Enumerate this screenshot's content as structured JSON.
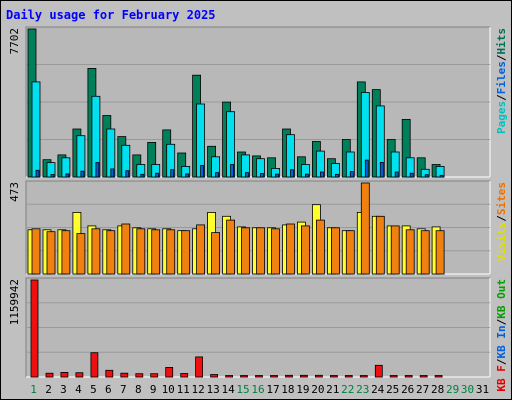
{
  "chart_data": [
    {
      "type": "bar",
      "title": "Daily usage for February 2025",
      "panel": "hits-files-pages",
      "y_max_label": "7702",
      "ylim": [
        0,
        7702
      ],
      "categories": [
        "1",
        "2",
        "3",
        "4",
        "5",
        "6",
        "7",
        "8",
        "9",
        "10",
        "11",
        "12",
        "13",
        "14",
        "15",
        "16",
        "17",
        "18",
        "19",
        "20",
        "21",
        "22",
        "23",
        "24",
        "25",
        "26",
        "27",
        "28",
        "29",
        "30",
        "31"
      ],
      "legend": [
        {
          "text": "Pages",
          "color": "#00C0C0"
        },
        {
          "text": "Files",
          "color": "#0060E0"
        },
        {
          "text": "Hits",
          "color": "#007050"
        }
      ],
      "series": [
        {
          "name": "Hits",
          "color": "#00805A",
          "values": [
            7702,
            900,
            1150,
            2500,
            5650,
            3200,
            2100,
            1150,
            1800,
            2450,
            1250,
            5300,
            1600,
            3900,
            1300,
            1100,
            1000,
            2500,
            1050,
            1850,
            950,
            1950,
            4950,
            4550,
            1950,
            3000,
            1000,
            650,
            0,
            0,
            0
          ]
        },
        {
          "name": "Files",
          "color": "#00E0F0",
          "values": [
            4950,
            750,
            1000,
            2150,
            4200,
            2500,
            1650,
            650,
            650,
            1700,
            550,
            3800,
            1050,
            3400,
            1150,
            950,
            450,
            2200,
            650,
            1350,
            700,
            1300,
            4400,
            3700,
            1300,
            1000,
            400,
            550,
            0,
            0,
            0
          ]
        },
        {
          "name": "Pages",
          "color": "#0060E0",
          "values": [
            350,
            130,
            160,
            300,
            750,
            420,
            330,
            140,
            200,
            380,
            160,
            600,
            230,
            650,
            230,
            180,
            150,
            380,
            150,
            260,
            140,
            280,
            880,
            760,
            260,
            200,
            120,
            90,
            0,
            0,
            0
          ]
        }
      ],
      "weekend_days": [
        "1",
        "15",
        "16",
        "22",
        "23",
        "29",
        "30"
      ]
    },
    {
      "type": "bar",
      "panel": "visits-sites",
      "y_max_label": "473",
      "ylim": [
        0,
        473
      ],
      "categories": [
        "1",
        "2",
        "3",
        "4",
        "5",
        "6",
        "7",
        "8",
        "9",
        "10",
        "11",
        "12",
        "13",
        "14",
        "15",
        "16",
        "17",
        "18",
        "19",
        "20",
        "21",
        "22",
        "23",
        "24",
        "25",
        "26",
        "27",
        "28",
        "29",
        "30",
        "31"
      ],
      "legend": [
        {
          "text": "Visits",
          "color": "#E0E000"
        },
        {
          "text": "Sites",
          "color": "#F07000"
        }
      ],
      "series": [
        {
          "name": "Visits",
          "color": "#FFFF30",
          "values": [
            230,
            230,
            230,
            320,
            250,
            230,
            250,
            240,
            235,
            235,
            225,
            235,
            320,
            300,
            245,
            240,
            240,
            255,
            270,
            360,
            240,
            225,
            320,
            300,
            250,
            250,
            235,
            245,
            0,
            0,
            0
          ]
        },
        {
          "name": "Sites",
          "color": "#F08010",
          "values": [
            235,
            220,
            225,
            210,
            235,
            225,
            260,
            235,
            230,
            230,
            225,
            255,
            215,
            280,
            240,
            240,
            235,
            260,
            250,
            280,
            240,
            225,
            473,
            300,
            250,
            230,
            225,
            225,
            0,
            0,
            0
          ]
        }
      ]
    },
    {
      "type": "bar",
      "panel": "kbytes",
      "y_max_label": "1159942",
      "ylim": [
        0,
        1159942
      ],
      "categories": [
        "1",
        "2",
        "3",
        "4",
        "5",
        "6",
        "7",
        "8",
        "9",
        "10",
        "11",
        "12",
        "13",
        "14",
        "15",
        "16",
        "17",
        "18",
        "19",
        "20",
        "21",
        "22",
        "23",
        "24",
        "25",
        "26",
        "27",
        "28",
        "29",
        "30",
        "31"
      ],
      "legend": [
        {
          "text": "KB F",
          "color": "#E00000"
        },
        {
          "text": "KB In",
          "color": "#0060E0"
        },
        {
          "text": "KB Out",
          "color": "#00A000"
        }
      ],
      "series": [
        {
          "name": "KB F",
          "color": "#EE1010",
          "values": [
            1159942,
            45000,
            55000,
            52000,
            290000,
            80000,
            45000,
            40000,
            40000,
            115000,
            42000,
            240000,
            30000,
            15000,
            12000,
            14000,
            15000,
            20000,
            20000,
            20000,
            18000,
            12000,
            10000,
            140000,
            6000,
            6000,
            6000,
            6000,
            0,
            0,
            0
          ]
        }
      ]
    }
  ],
  "x_axis": {
    "labels": [
      "1",
      "2",
      "3",
      "4",
      "5",
      "6",
      "7",
      "8",
      "9",
      "10",
      "11",
      "12",
      "13",
      "14",
      "15",
      "16",
      "17",
      "18",
      "19",
      "20",
      "21",
      "22",
      "23",
      "24",
      "25",
      "26",
      "27",
      "28",
      "29",
      "30",
      "31"
    ],
    "weekday_color": "#000000",
    "weekend_color": "#008040",
    "weekend_days": [
      "1",
      "15",
      "16",
      "22",
      "23",
      "29",
      "30"
    ]
  },
  "colors": {
    "background": "#C0C0C0",
    "panel": "#B8B8B8",
    "title": "#0000FF"
  }
}
